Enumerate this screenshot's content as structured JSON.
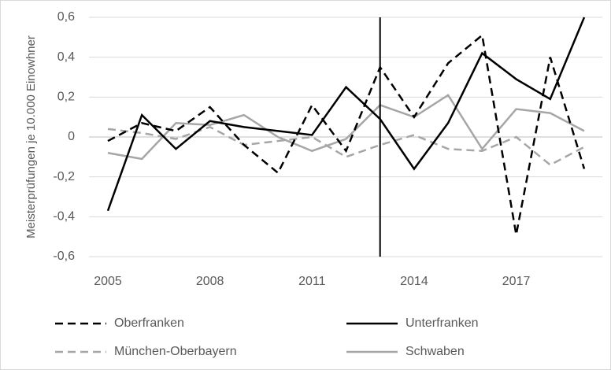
{
  "chart_data": {
    "type": "line",
    "y_label": "Meisterprüfungen je 10.000 Einowhner",
    "x": [
      2005,
      2006,
      2007,
      2008,
      2009,
      2010,
      2011,
      2012,
      2013,
      2014,
      2015,
      2016,
      2017,
      2018,
      2019
    ],
    "xlim": [
      2005,
      2019
    ],
    "xticks": [
      2005,
      2008,
      2011,
      2014,
      2017
    ],
    "ylim": [
      -0.6,
      0.6
    ],
    "yticks": [
      {
        "value": -0.6,
        "label": "-0,6"
      },
      {
        "value": -0.4,
        "label": "-0,4"
      },
      {
        "value": -0.2,
        "label": "-0,2"
      },
      0,
      {
        "value": 0.2,
        "label": "0,2"
      },
      {
        "value": 0.4,
        "label": "0,4"
      },
      {
        "value": 0.6,
        "label": "0,6"
      }
    ],
    "grid": true,
    "vline": 2013,
    "legend": "bottom",
    "series": [
      {
        "name": "Oberfranken",
        "color": "#000000",
        "dashed": true,
        "values": [
          -0.02,
          0.07,
          0.03,
          0.15,
          -0.04,
          -0.18,
          0.16,
          -0.07,
          0.35,
          0.1,
          0.37,
          0.51,
          -0.49,
          0.4,
          -0.16
        ]
      },
      {
        "name": "Unterfranken",
        "color": "#000000",
        "dashed": false,
        "values": [
          -0.37,
          0.11,
          -0.06,
          0.08,
          0.05,
          0.03,
          0.01,
          0.25,
          0.09,
          -0.16,
          0.07,
          0.42,
          0.29,
          0.19,
          0.6
        ]
      },
      {
        "name": "München-Oberbayern",
        "color": "#a6a6a6",
        "dashed": true,
        "values": [
          0.04,
          0.02,
          -0.01,
          0.05,
          -0.04,
          -0.02,
          0.0,
          -0.1,
          -0.04,
          0.01,
          -0.06,
          -0.07,
          0.0,
          -0.14,
          -0.05
        ]
      },
      {
        "name": "Schwaben",
        "color": "#a6a6a6",
        "dashed": false,
        "values": [
          -0.08,
          -0.11,
          0.07,
          0.06,
          0.11,
          0.0,
          -0.07,
          -0.01,
          0.16,
          0.1,
          0.21,
          -0.06,
          0.14,
          0.12,
          0.03
        ]
      }
    ]
  }
}
